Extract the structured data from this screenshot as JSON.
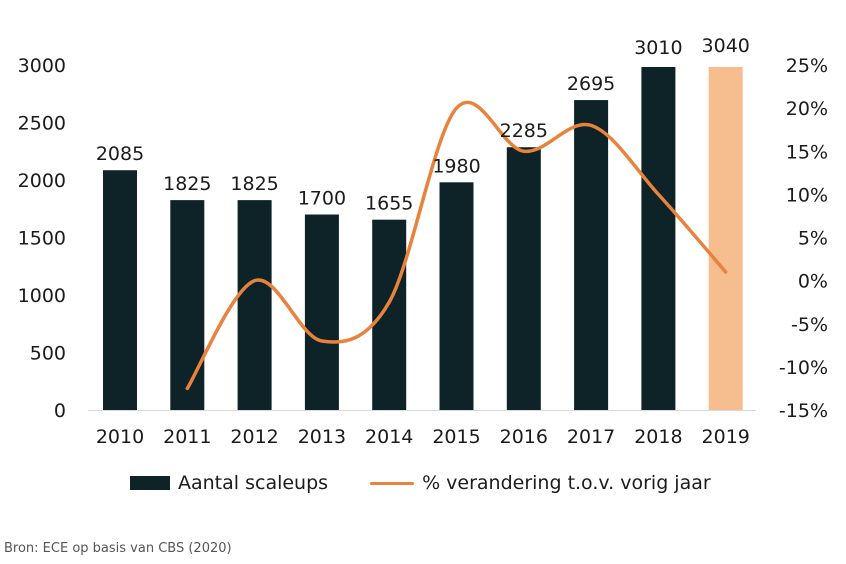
{
  "chart_data": {
    "type": "bar+line",
    "categories": [
      "2010",
      "2011",
      "2012",
      "2013",
      "2014",
      "2015",
      "2016",
      "2017",
      "2018",
      "2019"
    ],
    "series": [
      {
        "name": "Aantal scaleups",
        "type": "bar",
        "axis": "left",
        "values": [
          2085,
          1825,
          1825,
          1700,
          1655,
          1980,
          2285,
          2695,
          3010,
          3040
        ],
        "color": "#0d2327",
        "highlight_color": "#f6bd8f",
        "highlight_category": "2019"
      },
      {
        "name": "% verandering t.o.v. vorig jaar",
        "type": "line",
        "axis": "right",
        "values": [
          null,
          -12.5,
          0,
          -7,
          -2.5,
          20,
          15,
          18,
          10,
          1
        ],
        "color": "#e8823c"
      }
    ],
    "data_labels": [
      "2085",
      "1825",
      "1825",
      "1700",
      "1655",
      "1980",
      "2285",
      "2695",
      "3010",
      "3040"
    ],
    "y_left": {
      "ticks": [
        "0",
        "500",
        "1000",
        "1500",
        "2000",
        "2500",
        "3000"
      ],
      "ylim": [
        0,
        3000
      ]
    },
    "y_right": {
      "ticks": [
        "-15%",
        "-10%",
        "-5%",
        "0%",
        "5%",
        "10%",
        "15%",
        "20%",
        "25%"
      ],
      "ylim": [
        -15,
        25
      ]
    },
    "legend": [
      "Aantal scaleups",
      "% verandering t.o.v. vorig jaar"
    ],
    "legend_position": "bottom",
    "grid": false
  },
  "source": "Bron: ECE op basis van CBS (2020)"
}
